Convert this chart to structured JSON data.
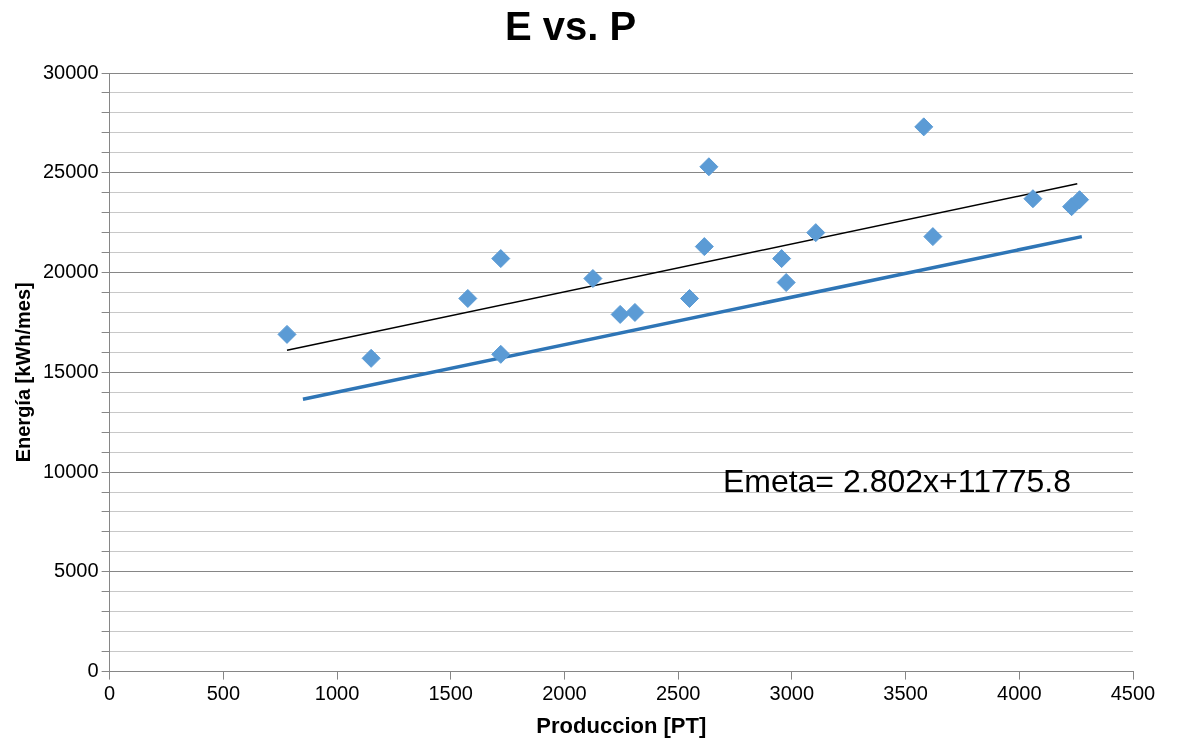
{
  "chart_data": {
    "type": "scatter",
    "title": "E vs. P",
    "xlabel": "Produccion [PT]",
    "ylabel": "Energía [kWh/mes]",
    "series": [
      {
        "color": "#5b9bd5",
        "x": [
          780,
          1150,
          1575,
          1720,
          1720,
          2125,
          2245,
          2310,
          2550,
          2615,
          2635,
          2955,
          2975,
          3105,
          3580,
          3620,
          4060,
          4230,
          4265
        ],
        "values": [
          16900,
          15700,
          18700,
          20700,
          15900,
          19700,
          17900,
          18000,
          18700,
          21300,
          25300,
          20700,
          19500,
          22000,
          27300,
          21800,
          23700,
          23300,
          23650
        ]
      },
      {
        "type": "line",
        "marker": "none",
        "color": "#000000",
        "x": [
          780,
          4255
        ],
        "values": [
          16100,
          24450
        ]
      },
      {
        "type": "line",
        "marker": "none",
        "color": "#2e75b6",
        "x": [
          850,
          4275
        ],
        "values": [
          13650,
          21800
        ]
      }
    ],
    "xlim": [
      0,
      4500
    ],
    "xticks": [
      0,
      500,
      1000,
      1500,
      2000,
      2500,
      3000,
      3500,
      4000,
      4500
    ],
    "ylim": [
      0,
      30000
    ],
    "yticks": [
      0,
      {
        "value": 1000,
        "label": null
      },
      {
        "value": 2000,
        "label": null
      },
      {
        "value": 3000,
        "label": null
      },
      {
        "value": 4000,
        "label": null
      },
      5000,
      {
        "value": 6000,
        "label": null
      },
      {
        "value": 7000,
        "label": null
      },
      {
        "value": 8000,
        "label": null
      },
      {
        "value": 9000,
        "label": null
      },
      10000,
      {
        "value": 11000,
        "label": null
      },
      {
        "value": 12000,
        "label": null
      },
      {
        "value": 13000,
        "label": null
      },
      {
        "value": 14000,
        "label": null
      },
      15000,
      {
        "value": 16000,
        "label": null
      },
      {
        "value": 17000,
        "label": null
      },
      {
        "value": 18000,
        "label": null
      },
      {
        "value": 19000,
        "label": null
      },
      20000,
      {
        "value": 21000,
        "label": null
      },
      {
        "value": 22000,
        "label": null
      },
      {
        "value": 23000,
        "label": null
      },
      {
        "value": 24000,
        "label": null
      },
      25000,
      {
        "value": 26000,
        "label": null
      },
      {
        "value": 27000,
        "label": null
      },
      {
        "value": 28000,
        "label": null
      },
      {
        "value": 29000,
        "label": null
      },
      30000
    ],
    "grid": "y",
    "marker": "diamond",
    "legend": false,
    "annotations": [
      "Emeta= 2.802x+11775.8"
    ]
  }
}
